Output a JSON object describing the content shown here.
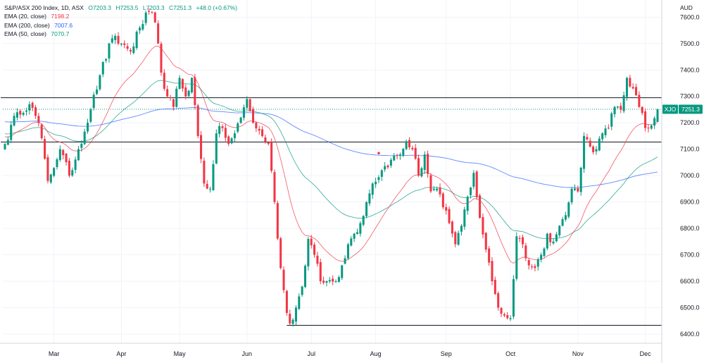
{
  "chart_data": {
    "type": "candlestick",
    "title": "S&P/ASX 200 Index, 1D, ASX",
    "ohlc_readout": {
      "open_label": "O",
      "open": "7203.3",
      "high_label": "H",
      "high": "7253.5",
      "low_label": "L",
      "low": "7203.3",
      "close_label": "C",
      "close": "7251.3",
      "change": "+48.0 (+0.67%)"
    },
    "currency": "AUD",
    "symbol": "XJO",
    "last_price": "7251.3",
    "y_range": [
      6365,
      7665
    ],
    "y_ticks": [
      6400,
      6500,
      6600,
      6700,
      6800,
      6900,
      7000,
      7100,
      7200,
      7300,
      7400,
      7500,
      7600
    ],
    "y_tick_labels": [
      "6400.0",
      "6500.0",
      "6600.0",
      "6700.0",
      "6800.0",
      "6900.0",
      "7000.0",
      "7100.0",
      "7200.0",
      "7300.0",
      "7400.0",
      "7500.0",
      "7600.0"
    ],
    "x_labels": [
      {
        "label": "Mar",
        "index": 16
      },
      {
        "label": "Apr",
        "index": 38
      },
      {
        "label": "May",
        "index": 57
      },
      {
        "label": "Jun",
        "index": 79
      },
      {
        "label": "Jul",
        "index": 100
      },
      {
        "label": "Aug",
        "index": 121
      },
      {
        "label": "Sep",
        "index": 144
      },
      {
        "label": "Oct",
        "index": 165
      },
      {
        "label": "Nov",
        "index": 187
      },
      {
        "label": "Dec",
        "index": 209
      }
    ],
    "indicators": [
      {
        "name": "EMA (20, close)",
        "value": "7198.2",
        "color": "#f23645"
      },
      {
        "name": "EMA (200, close)",
        "value": "7007.6",
        "color": "#2962ff"
      },
      {
        "name": "EMA (50, close)",
        "value": "7070.7",
        "color": "#089981"
      }
    ],
    "horizontal_lines": [
      7295,
      7127,
      6433
    ],
    "last_price_line": 7251.3,
    "marker_point": {
      "index": 122,
      "value": 7085
    },
    "colors": {
      "up": "#089981",
      "down": "#f23645",
      "grid": "#f0f3fa",
      "axis": "#d1d4dc"
    },
    "close_anchors": [
      [
        0,
        7120
      ],
      [
        4,
        7240
      ],
      [
        8,
        7270
      ],
      [
        11,
        7200
      ],
      [
        14,
        6980
      ],
      [
        18,
        7100
      ],
      [
        21,
        7000
      ],
      [
        24,
        7100
      ],
      [
        28,
        7250
      ],
      [
        31,
        7380
      ],
      [
        35,
        7520
      ],
      [
        38,
        7500
      ],
      [
        41,
        7470
      ],
      [
        44,
        7560
      ],
      [
        47,
        7620
      ],
      [
        49,
        7580
      ],
      [
        51,
        7390
      ],
      [
        53,
        7300
      ],
      [
        55,
        7260
      ],
      [
        57,
        7370
      ],
      [
        59,
        7300
      ],
      [
        61,
        7370
      ],
      [
        63,
        7150
      ],
      [
        65,
        6970
      ],
      [
        67,
        6950
      ],
      [
        69,
        7160
      ],
      [
        71,
        7180
      ],
      [
        73,
        7120
      ],
      [
        75,
        7160
      ],
      [
        77,
        7220
      ],
      [
        79,
        7290
      ],
      [
        81,
        7200
      ],
      [
        84,
        7150
      ],
      [
        86,
        7120
      ],
      [
        88,
        6900
      ],
      [
        90,
        6650
      ],
      [
        92,
        6480
      ],
      [
        93,
        6440
      ],
      [
        95,
        6500
      ],
      [
        97,
        6580
      ],
      [
        99,
        6760
      ],
      [
        101,
        6700
      ],
      [
        103,
        6600
      ],
      [
        105,
        6600
      ],
      [
        108,
        6600
      ],
      [
        110,
        6660
      ],
      [
        112,
        6740
      ],
      [
        114,
        6780
      ],
      [
        116,
        6820
      ],
      [
        118,
        6900
      ],
      [
        120,
        6970
      ],
      [
        123,
        7020
      ],
      [
        126,
        7060
      ],
      [
        129,
        7080
      ],
      [
        131,
        7130
      ],
      [
        133,
        7100
      ],
      [
        135,
        7000
      ],
      [
        137,
        7080
      ],
      [
        139,
        6940
      ],
      [
        141,
        6950
      ],
      [
        143,
        6880
      ],
      [
        145,
        6820
      ],
      [
        147,
        6740
      ],
      [
        149,
        6810
      ],
      [
        151,
        6920
      ],
      [
        153,
        7010
      ],
      [
        155,
        6840
      ],
      [
        157,
        6720
      ],
      [
        159,
        6600
      ],
      [
        161,
        6500
      ],
      [
        163,
        6470
      ],
      [
        165,
        6460
      ],
      [
        167,
        6770
      ],
      [
        169,
        6740
      ],
      [
        171,
        6660
      ],
      [
        173,
        6650
      ],
      [
        175,
        6700
      ],
      [
        177,
        6780
      ],
      [
        179,
        6750
      ],
      [
        181,
        6810
      ],
      [
        183,
        6850
      ],
      [
        185,
        6950
      ],
      [
        187,
        6940
      ],
      [
        189,
        7150
      ],
      [
        191,
        7110
      ],
      [
        193,
        7100
      ],
      [
        195,
        7160
      ],
      [
        197,
        7180
      ],
      [
        199,
        7260
      ],
      [
        201,
        7250
      ],
      [
        203,
        7370
      ],
      [
        205,
        7330
      ],
      [
        207,
        7260
      ],
      [
        209,
        7180
      ],
      [
        211,
        7190
      ],
      [
        213,
        7251.3
      ]
    ],
    "candle_count": 214
  }
}
